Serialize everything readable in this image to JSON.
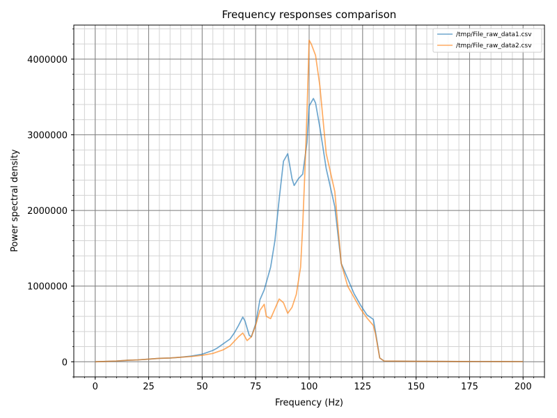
{
  "chart_data": {
    "type": "line",
    "title": "Frequency responses comparison",
    "xlabel": "Frequency (Hz)",
    "ylabel": "Power spectral density",
    "xlim": [
      -10,
      210
    ],
    "ylim": [
      -200000,
      4450000
    ],
    "xticks": [
      0,
      25,
      50,
      75,
      100,
      125,
      150,
      175,
      200
    ],
    "yticks": [
      0,
      1000000,
      2000000,
      3000000,
      4000000
    ],
    "ytick_labels": [
      "0",
      "1000000",
      "2000000",
      "3000000",
      "4000000"
    ],
    "grid": true,
    "legend_position": "top-right",
    "series": [
      {
        "name": "/tmp/File_raw_data1.csv",
        "color": "#1f77b4",
        "x": [
          0,
          5,
          10,
          15,
          20,
          25,
          30,
          35,
          40,
          45,
          50,
          55,
          57,
          60,
          63,
          65,
          67,
          69,
          70,
          72,
          73,
          75,
          77,
          79,
          82,
          84,
          86,
          88,
          90,
          92,
          93,
          95,
          97,
          99,
          100,
          102,
          103,
          105,
          108,
          112,
          115,
          118,
          121,
          124,
          127,
          130,
          131,
          133,
          135,
          140,
          150,
          160,
          170,
          180,
          190,
          200
        ],
        "y": [
          0,
          5000,
          10000,
          20000,
          25000,
          35000,
          45000,
          50000,
          60000,
          75000,
          100000,
          150000,
          180000,
          240000,
          300000,
          380000,
          480000,
          590000,
          540000,
          350000,
          330000,
          500000,
          820000,
          950000,
          1250000,
          1600000,
          2150000,
          2650000,
          2750000,
          2420000,
          2330000,
          2420000,
          2480000,
          2900000,
          3380000,
          3480000,
          3420000,
          3100000,
          2550000,
          2050000,
          1300000,
          1100000,
          900000,
          750000,
          620000,
          560000,
          400000,
          50000,
          10000,
          8000,
          6000,
          5000,
          4000,
          3000,
          2500,
          2000
        ]
      },
      {
        "name": "/tmp/File_raw_data2.csv",
        "color": "#ff7f0e",
        "x": [
          0,
          5,
          10,
          15,
          20,
          25,
          30,
          35,
          40,
          45,
          50,
          55,
          60,
          63,
          65,
          67,
          69,
          71,
          73,
          75,
          77,
          79,
          80,
          82,
          84,
          86,
          88,
          90,
          92,
          94,
          96,
          97,
          98,
          99,
          100,
          101,
          103,
          105,
          108,
          112,
          115,
          118,
          121,
          124,
          127,
          130,
          131,
          133,
          135,
          140,
          150,
          160,
          170,
          180,
          190,
          200
        ],
        "y": [
          0,
          5000,
          10000,
          20000,
          25000,
          35000,
          45000,
          50000,
          60000,
          70000,
          85000,
          110000,
          160000,
          210000,
          270000,
          330000,
          380000,
          280000,
          330000,
          480000,
          680000,
          760000,
          600000,
          570000,
          700000,
          830000,
          780000,
          640000,
          720000,
          890000,
          1250000,
          1800000,
          2500000,
          3300000,
          4250000,
          4200000,
          4050000,
          3650000,
          2750000,
          2250000,
          1300000,
          1000000,
          850000,
          700000,
          580000,
          480000,
          370000,
          50000,
          10000,
          8000,
          6000,
          5000,
          4000,
          3000,
          2500,
          2000
        ]
      }
    ]
  }
}
